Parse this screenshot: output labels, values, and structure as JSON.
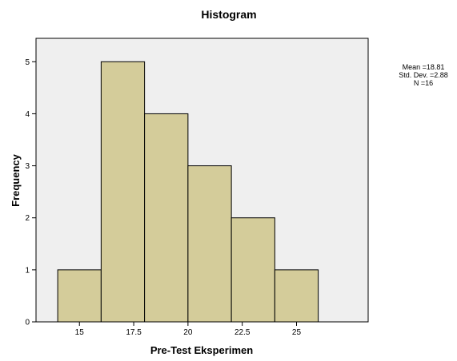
{
  "chart_data": {
    "type": "bar",
    "title": "Histogram",
    "xlabel": "Pre-Test Eksperimen",
    "ylabel": "Frequency",
    "bins": [
      {
        "from": 14,
        "to": 16,
        "count": 1
      },
      {
        "from": 16,
        "to": 18,
        "count": 5
      },
      {
        "from": 18,
        "to": 20,
        "count": 4
      },
      {
        "from": 20,
        "to": 22,
        "count": 3
      },
      {
        "from": 22,
        "to": 24,
        "count": 2
      },
      {
        "from": 24,
        "to": 26,
        "count": 1
      }
    ],
    "x_ticks": [
      {
        "value": 15,
        "label": "15"
      },
      {
        "value": 17.5,
        "label": "17.5"
      },
      {
        "value": 20,
        "label": "20"
      },
      {
        "value": 22.5,
        "label": "22.5"
      },
      {
        "value": 25,
        "label": "25"
      }
    ],
    "y_ticks": [
      0,
      1,
      2,
      3,
      4,
      5
    ],
    "xlim": [
      13,
      28.3
    ],
    "ylim": [
      0,
      5.45
    ],
    "grid": false,
    "legend": "right",
    "stats": {
      "mean": "Mean =18.81",
      "std_dev": "Std. Dev. =2.88",
      "n": "N =16"
    },
    "colors": {
      "bar_fill": "#d4cc9a",
      "bar_stroke": "#000000",
      "plot_background": "#efefef"
    }
  }
}
